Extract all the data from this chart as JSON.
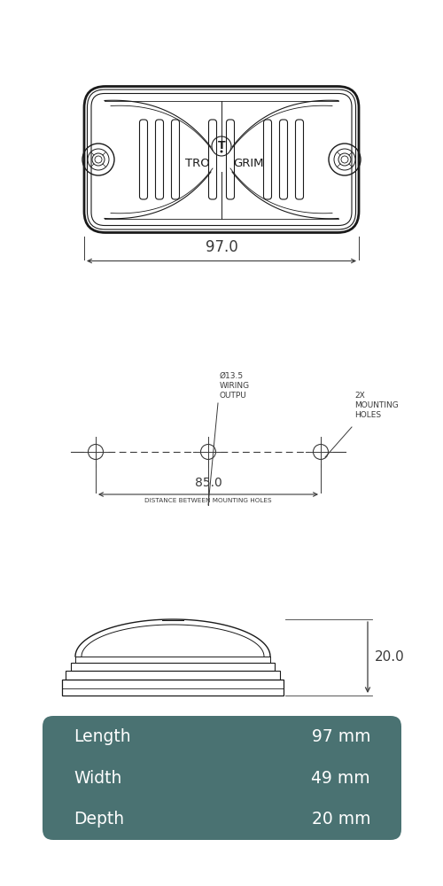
{
  "bg_color": "#ffffff",
  "line_color": "#1a1a1a",
  "dim_color": "#3a3a3a",
  "table_bg": "#4a7272",
  "table_text": "#ffffff",
  "table_rows": [
    [
      "Length",
      "97 mm"
    ],
    [
      "Width",
      "49 mm"
    ],
    [
      "Depth",
      "20 mm"
    ]
  ],
  "dim_97": "97.0",
  "dim_85": "85.0",
  "dim_85_label": "DISTANCE BETWEEN MOUNTING HOLES",
  "dim_20": "20.0",
  "wiring_label_line1": "Ø13.5",
  "wiring_label_line2": "WIRING",
  "wiring_label_line3": "OUTPU",
  "mounting_label_line1": "2X",
  "mounting_label_line2": "MOUNTING",
  "mounting_label_line3": "HOLES"
}
